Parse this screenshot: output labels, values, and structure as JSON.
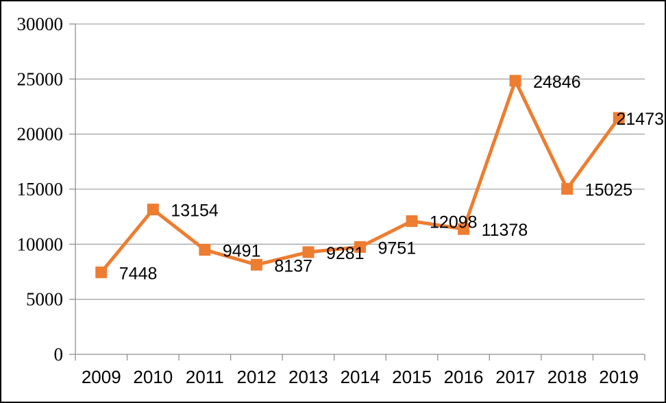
{
  "chart_data": {
    "type": "line",
    "title": "",
    "xlabel": "",
    "ylabel": "",
    "categories": [
      "2009",
      "2010",
      "2011",
      "2012",
      "2013",
      "2014",
      "2015",
      "2016",
      "2017",
      "2018",
      "2019"
    ],
    "series": [
      {
        "values": [
          7448,
          13154,
          9491,
          8137,
          9281,
          9751,
          12098,
          11378,
          24846,
          15025,
          21473
        ],
        "data_labels": [
          "7448",
          "13154",
          "9491",
          "8137",
          "9281",
          "9751",
          "12098",
          "11378",
          "24846",
          "15025",
          "21473"
        ]
      }
    ],
    "show_data_labels": true,
    "ylim": [
      0,
      30000
    ],
    "ytick_interval": 5000,
    "ytick_labels": [
      "0",
      "5000",
      "10000",
      "15000",
      "20000",
      "25000",
      "30000"
    ],
    "grid": "horizontal",
    "legend": "none",
    "marker_style": "square",
    "colors": {
      "line": "#ED7D31",
      "marker": "#ED7D31",
      "gridline": "#A6A6A6",
      "axis": "#8E8E8E",
      "text": "#000000",
      "background": "#FFFFFF",
      "border": "#000000"
    }
  }
}
